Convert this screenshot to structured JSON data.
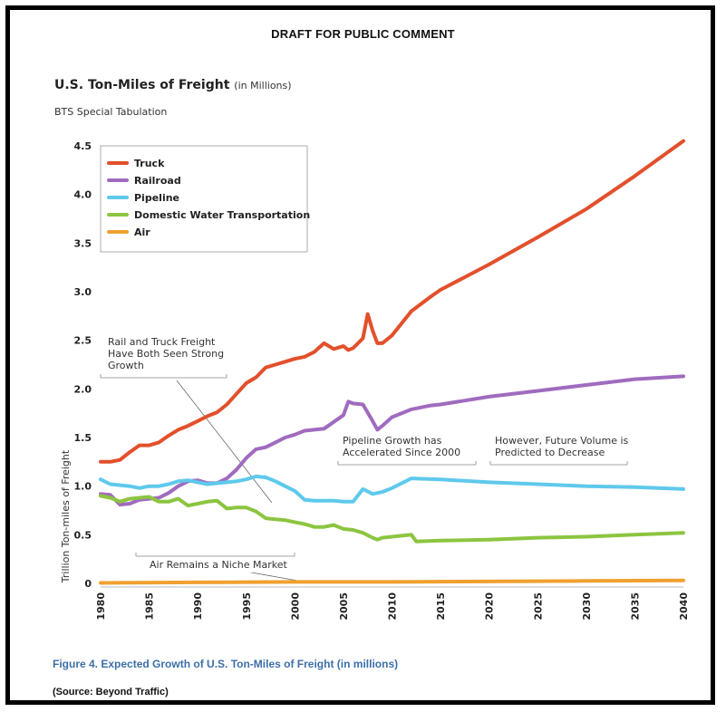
{
  "header": "DRAFT FOR PUBLIC COMMENT",
  "title": "U.S. Ton-Miles of Freight",
  "title_units": "(in Millions)",
  "subtitle": "BTS Special Tabulation",
  "caption": "Figure 4. Expected Growth of U.S. Ton-Miles of Freight (in millions)",
  "source": "(Source: Beyond Traffic)",
  "chart_data": {
    "type": "line",
    "ylabel": "Trillion Ton-miles of Freight",
    "xlabel": "",
    "xlim": [
      1980,
      2040
    ],
    "ylim": [
      0,
      4.5
    ],
    "x_ticks": [
      "1980",
      "1985",
      "1990",
      "1995",
      "2000",
      "2005",
      "2010",
      "2015",
      "2020",
      "2025",
      "2030",
      "2035",
      "2040"
    ],
    "y_ticks": [
      "0",
      "0.5",
      "1.0",
      "1.5",
      "2.0",
      "2.5",
      "3.0",
      "3.5",
      "4.0",
      "4.5"
    ],
    "grid": false,
    "legend_position": "top-left",
    "series": [
      {
        "name": "Truck",
        "color": "#e2502b",
        "points": [
          [
            1980,
            1.25
          ],
          [
            1981,
            1.25
          ],
          [
            1982,
            1.27
          ],
          [
            1983,
            1.35
          ],
          [
            1984,
            1.42
          ],
          [
            1985,
            1.42
          ],
          [
            1986,
            1.45
          ],
          [
            1987,
            1.52
          ],
          [
            1988,
            1.58
          ],
          [
            1989,
            1.62
          ],
          [
            1990,
            1.67
          ],
          [
            1991,
            1.72
          ],
          [
            1992,
            1.76
          ],
          [
            1993,
            1.84
          ],
          [
            1994,
            1.95
          ],
          [
            1995,
            2.06
          ],
          [
            1996,
            2.12
          ],
          [
            1997,
            2.22
          ],
          [
            1998,
            2.25
          ],
          [
            1999,
            2.28
          ],
          [
            2000,
            2.31
          ],
          [
            2001,
            2.33
          ],
          [
            2002,
            2.38
          ],
          [
            2003,
            2.47
          ],
          [
            2004,
            2.41
          ],
          [
            2005,
            2.44
          ],
          [
            2005.5,
            2.4
          ],
          [
            2006,
            2.42
          ],
          [
            2007,
            2.52
          ],
          [
            2007.5,
            2.77
          ],
          [
            2008,
            2.6
          ],
          [
            2008.5,
            2.47
          ],
          [
            2009,
            2.47
          ],
          [
            2010,
            2.55
          ],
          [
            2012,
            2.8
          ],
          [
            2014,
            2.95
          ],
          [
            2015,
            3.02
          ],
          [
            2020,
            3.28
          ],
          [
            2025,
            3.56
          ],
          [
            2030,
            3.85
          ],
          [
            2035,
            4.19
          ],
          [
            2040,
            4.55
          ]
        ]
      },
      {
        "name": "Railroad",
        "color": "#a06bbf",
        "points": [
          [
            1980,
            0.92
          ],
          [
            1981,
            0.91
          ],
          [
            1982,
            0.81
          ],
          [
            1983,
            0.82
          ],
          [
            1984,
            0.86
          ],
          [
            1985,
            0.87
          ],
          [
            1986,
            0.88
          ],
          [
            1987,
            0.93
          ],
          [
            1988,
            1.0
          ],
          [
            1989,
            1.05
          ],
          [
            1990,
            1.06
          ],
          [
            1991,
            1.03
          ],
          [
            1992,
            1.03
          ],
          [
            1993,
            1.08
          ],
          [
            1994,
            1.17
          ],
          [
            1995,
            1.29
          ],
          [
            1996,
            1.38
          ],
          [
            1997,
            1.4
          ],
          [
            1998,
            1.45
          ],
          [
            1999,
            1.5
          ],
          [
            2000,
            1.53
          ],
          [
            2001,
            1.57
          ],
          [
            2002,
            1.58
          ],
          [
            2003,
            1.59
          ],
          [
            2004,
            1.66
          ],
          [
            2005,
            1.73
          ],
          [
            2005.5,
            1.87
          ],
          [
            2006,
            1.85
          ],
          [
            2007,
            1.84
          ],
          [
            2008,
            1.67
          ],
          [
            2008.5,
            1.58
          ],
          [
            2009,
            1.62
          ],
          [
            2010,
            1.71
          ],
          [
            2012,
            1.79
          ],
          [
            2014,
            1.83
          ],
          [
            2015,
            1.84
          ],
          [
            2020,
            1.92
          ],
          [
            2025,
            1.98
          ],
          [
            2030,
            2.04
          ],
          [
            2035,
            2.1
          ],
          [
            2040,
            2.13
          ]
        ]
      },
      {
        "name": "Pipeline",
        "color": "#5ec9ec",
        "points": [
          [
            1980,
            1.07
          ],
          [
            1981,
            1.02
          ],
          [
            1982,
            1.01
          ],
          [
            1983,
            1.0
          ],
          [
            1984,
            0.98
          ],
          [
            1985,
            1.0
          ],
          [
            1986,
            1.0
          ],
          [
            1987,
            1.02
          ],
          [
            1988,
            1.05
          ],
          [
            1989,
            1.06
          ],
          [
            1990,
            1.04
          ],
          [
            1991,
            1.02
          ],
          [
            1992,
            1.03
          ],
          [
            1993,
            1.04
          ],
          [
            1994,
            1.05
          ],
          [
            1995,
            1.07
          ],
          [
            1996,
            1.1
          ],
          [
            1997,
            1.09
          ],
          [
            1998,
            1.05
          ],
          [
            1999,
            1.0
          ],
          [
            2000,
            0.95
          ],
          [
            2001,
            0.86
          ],
          [
            2002,
            0.85
          ],
          [
            2003,
            0.85
          ],
          [
            2004,
            0.85
          ],
          [
            2005,
            0.84
          ],
          [
            2006,
            0.84
          ],
          [
            2007,
            0.97
          ],
          [
            2008,
            0.92
          ],
          [
            2009,
            0.94
          ],
          [
            2010,
            0.98
          ],
          [
            2012,
            1.08
          ],
          [
            2015,
            1.07
          ],
          [
            2020,
            1.04
          ],
          [
            2025,
            1.02
          ],
          [
            2030,
            1.0
          ],
          [
            2035,
            0.99
          ],
          [
            2040,
            0.97
          ]
        ]
      },
      {
        "name": "Domestic Water Transportation",
        "color": "#8cc540",
        "points": [
          [
            1980,
            0.9
          ],
          [
            1981,
            0.88
          ],
          [
            1982,
            0.84
          ],
          [
            1983,
            0.87
          ],
          [
            1984,
            0.88
          ],
          [
            1985,
            0.89
          ],
          [
            1986,
            0.84
          ],
          [
            1987,
            0.84
          ],
          [
            1988,
            0.87
          ],
          [
            1989,
            0.8
          ],
          [
            1990,
            0.82
          ],
          [
            1991,
            0.84
          ],
          [
            1992,
            0.85
          ],
          [
            1993,
            0.77
          ],
          [
            1994,
            0.78
          ],
          [
            1995,
            0.78
          ],
          [
            1996,
            0.74
          ],
          [
            1997,
            0.67
          ],
          [
            1998,
            0.66
          ],
          [
            1999,
            0.65
          ],
          [
            2000,
            0.63
          ],
          [
            2001,
            0.61
          ],
          [
            2002,
            0.58
          ],
          [
            2003,
            0.58
          ],
          [
            2004,
            0.6
          ],
          [
            2005,
            0.56
          ],
          [
            2006,
            0.55
          ],
          [
            2007,
            0.52
          ],
          [
            2008,
            0.47
          ],
          [
            2008.5,
            0.45
          ],
          [
            2009,
            0.47
          ],
          [
            2010,
            0.48
          ],
          [
            2012,
            0.5
          ],
          [
            2012.5,
            0.43
          ],
          [
            2015,
            0.44
          ],
          [
            2020,
            0.45
          ],
          [
            2025,
            0.47
          ],
          [
            2030,
            0.48
          ],
          [
            2035,
            0.5
          ],
          [
            2040,
            0.52
          ]
        ]
      },
      {
        "name": "Air",
        "color": "#f0a030",
        "points": [
          [
            1980,
            0.005
          ],
          [
            1990,
            0.01
          ],
          [
            2000,
            0.015
          ],
          [
            2010,
            0.015
          ],
          [
            2020,
            0.02
          ],
          [
            2030,
            0.025
          ],
          [
            2040,
            0.03
          ]
        ]
      }
    ],
    "annotations": [
      {
        "text_lines": [
          "Rail and Truck Freight",
          "Have Both Seen Strong",
          "Growth"
        ]
      },
      {
        "text_lines": [
          "Pipeline Growth has",
          "Accelerated Since 2000"
        ]
      },
      {
        "text_lines": [
          "However, Future Volume is",
          "Predicted to Decrease"
        ]
      },
      {
        "text_lines": [
          "Air Remains a Niche Market"
        ]
      }
    ]
  }
}
